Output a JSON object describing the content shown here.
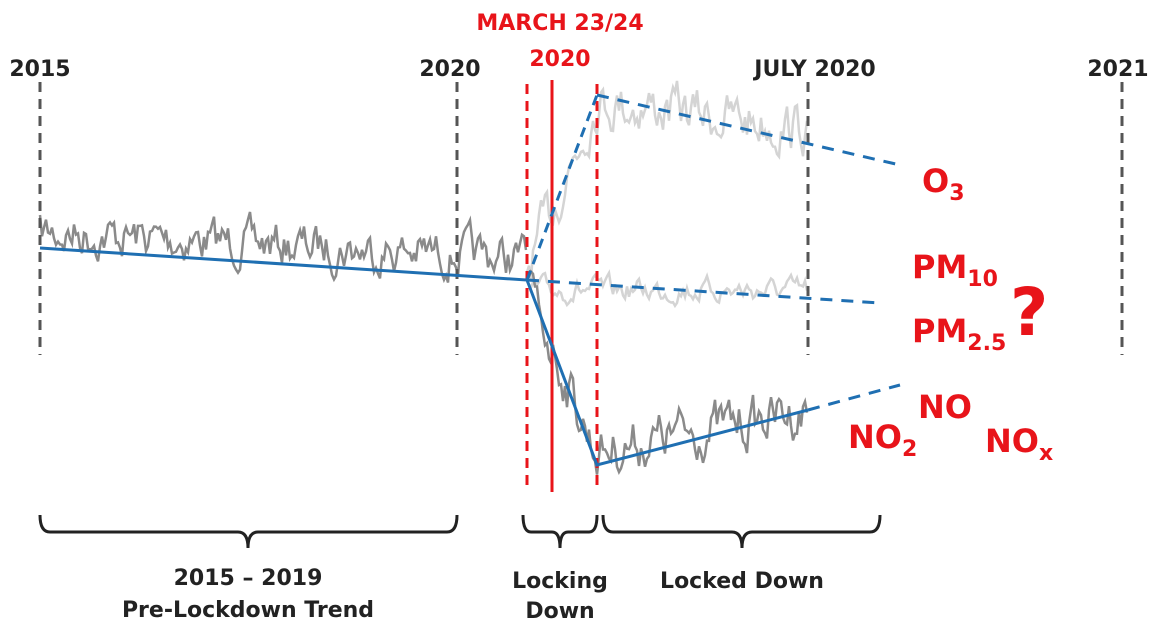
{
  "timeline": {
    "labels": [
      "2015",
      "2020",
      "JULY 2020",
      "2021"
    ],
    "march_label": "MARCH 23/24",
    "march_year": "2020"
  },
  "pollutants": {
    "o3": {
      "main": "O",
      "sub": "3"
    },
    "pm10": {
      "main": "PM",
      "sub": "10"
    },
    "question": "?",
    "pm25": {
      "main": "PM",
      "sub": "2.5"
    },
    "no": "NO",
    "no2": {
      "main": "NO",
      "sub": "2"
    },
    "nox": {
      "main": "NO",
      "sub": "x"
    }
  },
  "periods": {
    "pre": [
      "2015 – 2019",
      "Pre-Lockdown Trend"
    ],
    "locking": [
      "Locking",
      "Down"
    ],
    "locked": "Locked Down"
  }
}
